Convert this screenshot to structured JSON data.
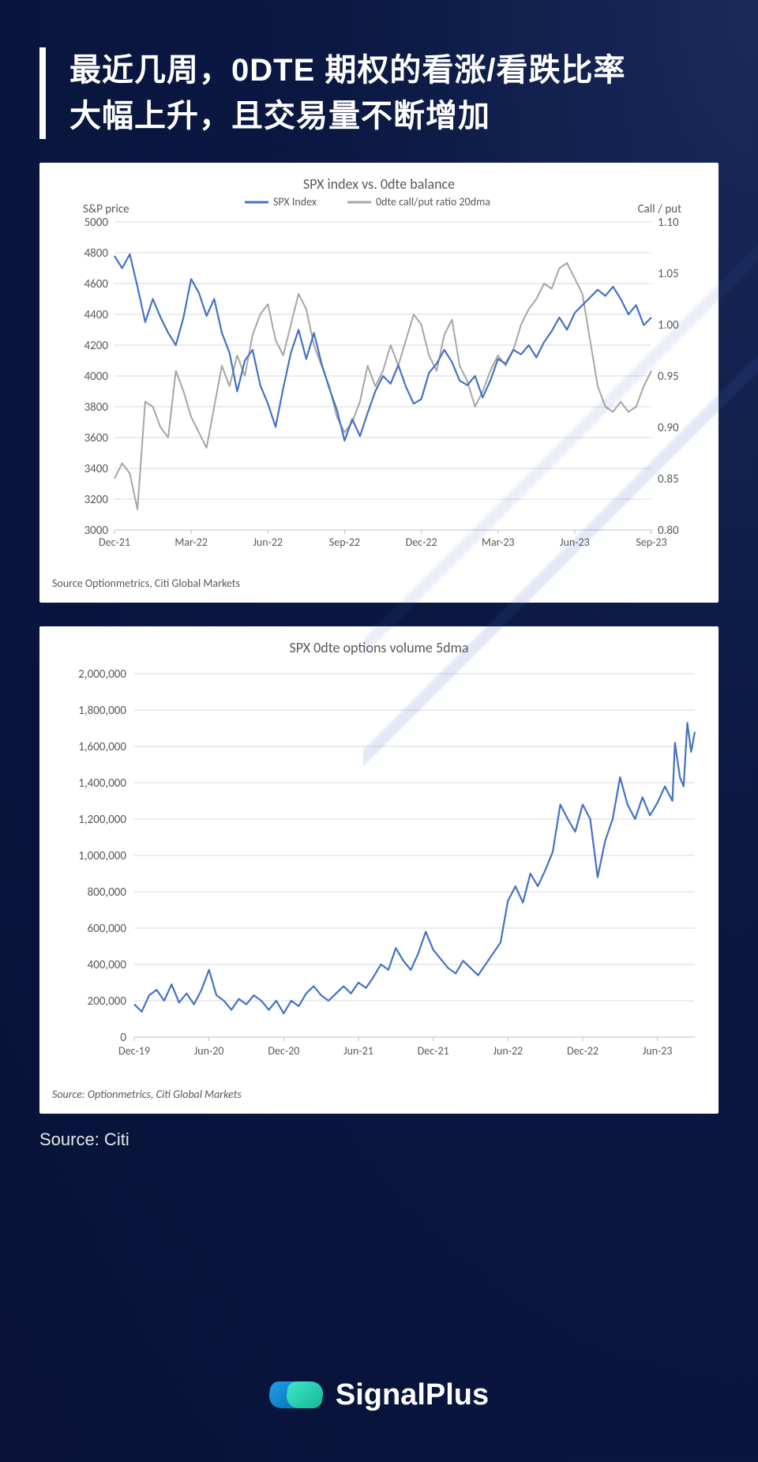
{
  "header": {
    "title_line1": "最近几周，0DTE 期权的看涨/看跌比率",
    "title_line2": "大幅上升，且交易量不断增加"
  },
  "outer_source": "Source: Citi",
  "brand": "SignalPlus",
  "chart1": {
    "type": "line-dual-axis",
    "title": "SPX index vs. 0dte balance",
    "source": "Source Optionmetrics, Citi Global Markets",
    "background_color": "#ffffff",
    "grid_color": "#d9d9d9",
    "axis_color": "#bfbfbf",
    "text_color": "#595959",
    "left_axis": {
      "label": "S&P price",
      "min": 3000,
      "max": 5000,
      "step": 200
    },
    "right_axis": {
      "label": "Call / put",
      "min": 0.8,
      "max": 1.1,
      "step": 0.05
    },
    "x_labels": [
      "Dec-21",
      "Mar-22",
      "Jun-22",
      "Sep-22",
      "Dec-22",
      "Mar-23",
      "Jun-23",
      "Sep-23"
    ],
    "x_range": [
      0,
      21
    ],
    "legend": [
      {
        "label": "SPX Index",
        "color": "#4472c4",
        "width": 2.5
      },
      {
        "label": "0dte call/put ratio 20dma",
        "color": "#a6a6a6",
        "width": 2.5
      }
    ],
    "spx": {
      "color": "#4472c4",
      "width": 2.2,
      "points": [
        [
          0,
          4780
        ],
        [
          0.3,
          4700
        ],
        [
          0.6,
          4790
        ],
        [
          0.9,
          4580
        ],
        [
          1.2,
          4350
        ],
        [
          1.5,
          4500
        ],
        [
          1.8,
          4380
        ],
        [
          2.1,
          4280
        ],
        [
          2.4,
          4200
        ],
        [
          2.7,
          4380
        ],
        [
          3,
          4630
        ],
        [
          3.3,
          4540
        ],
        [
          3.6,
          4390
        ],
        [
          3.9,
          4500
        ],
        [
          4.2,
          4280
        ],
        [
          4.5,
          4150
        ],
        [
          4.8,
          3900
        ],
        [
          5.1,
          4100
        ],
        [
          5.4,
          4170
        ],
        [
          5.7,
          3940
        ],
        [
          6,
          3820
        ],
        [
          6.3,
          3670
        ],
        [
          6.6,
          3920
        ],
        [
          6.9,
          4150
        ],
        [
          7.2,
          4300
        ],
        [
          7.5,
          4110
        ],
        [
          7.8,
          4280
        ],
        [
          8.1,
          4080
        ],
        [
          8.4,
          3920
        ],
        [
          8.7,
          3780
        ],
        [
          9,
          3580
        ],
        [
          9.3,
          3720
        ],
        [
          9.6,
          3610
        ],
        [
          9.9,
          3760
        ],
        [
          10.2,
          3900
        ],
        [
          10.5,
          4000
        ],
        [
          10.8,
          3950
        ],
        [
          11.1,
          4070
        ],
        [
          11.4,
          3930
        ],
        [
          11.7,
          3820
        ],
        [
          12,
          3850
        ],
        [
          12.3,
          4020
        ],
        [
          12.6,
          4080
        ],
        [
          12.9,
          4170
        ],
        [
          13.2,
          4090
        ],
        [
          13.5,
          3970
        ],
        [
          13.8,
          3940
        ],
        [
          14.1,
          4000
        ],
        [
          14.4,
          3860
        ],
        [
          14.7,
          3970
        ],
        [
          15,
          4110
        ],
        [
          15.3,
          4080
        ],
        [
          15.6,
          4170
        ],
        [
          15.9,
          4140
        ],
        [
          16.2,
          4200
        ],
        [
          16.5,
          4120
        ],
        [
          16.8,
          4220
        ],
        [
          17.1,
          4290
        ],
        [
          17.4,
          4380
        ],
        [
          17.7,
          4300
        ],
        [
          18,
          4410
        ],
        [
          18.3,
          4460
        ],
        [
          18.6,
          4510
        ],
        [
          18.9,
          4560
        ],
        [
          19.2,
          4520
        ],
        [
          19.5,
          4580
        ],
        [
          19.8,
          4500
        ],
        [
          20.1,
          4400
        ],
        [
          20.4,
          4460
        ],
        [
          20.7,
          4330
        ],
        [
          21,
          4380
        ]
      ]
    },
    "ratio": {
      "color": "#a6a6a6",
      "width": 2.0,
      "points": [
        [
          0,
          0.85
        ],
        [
          0.3,
          0.865
        ],
        [
          0.6,
          0.855
        ],
        [
          0.9,
          0.82
        ],
        [
          1.2,
          0.925
        ],
        [
          1.5,
          0.92
        ],
        [
          1.8,
          0.9
        ],
        [
          2.1,
          0.89
        ],
        [
          2.4,
          0.955
        ],
        [
          2.7,
          0.935
        ],
        [
          3,
          0.91
        ],
        [
          3.3,
          0.895
        ],
        [
          3.6,
          0.88
        ],
        [
          3.9,
          0.92
        ],
        [
          4.2,
          0.96
        ],
        [
          4.5,
          0.94
        ],
        [
          4.8,
          0.97
        ],
        [
          5.1,
          0.95
        ],
        [
          5.4,
          0.99
        ],
        [
          5.7,
          1.01
        ],
        [
          6,
          1.02
        ],
        [
          6.3,
          0.985
        ],
        [
          6.6,
          0.97
        ],
        [
          6.9,
          1.0
        ],
        [
          7.2,
          1.03
        ],
        [
          7.5,
          1.015
        ],
        [
          7.8,
          0.98
        ],
        [
          8.1,
          0.96
        ],
        [
          8.4,
          0.94
        ],
        [
          8.7,
          0.91
        ],
        [
          9,
          0.895
        ],
        [
          9.3,
          0.905
        ],
        [
          9.6,
          0.925
        ],
        [
          9.9,
          0.96
        ],
        [
          10.2,
          0.94
        ],
        [
          10.5,
          0.955
        ],
        [
          10.8,
          0.98
        ],
        [
          11.1,
          0.96
        ],
        [
          11.4,
          0.985
        ],
        [
          11.7,
          1.01
        ],
        [
          12,
          1.0
        ],
        [
          12.3,
          0.97
        ],
        [
          12.6,
          0.955
        ],
        [
          12.9,
          0.99
        ],
        [
          13.2,
          1.005
        ],
        [
          13.5,
          0.96
        ],
        [
          13.8,
          0.945
        ],
        [
          14.1,
          0.92
        ],
        [
          14.4,
          0.935
        ],
        [
          14.7,
          0.955
        ],
        [
          15,
          0.97
        ],
        [
          15.3,
          0.96
        ],
        [
          15.6,
          0.975
        ],
        [
          15.9,
          1.0
        ],
        [
          16.2,
          1.015
        ],
        [
          16.5,
          1.025
        ],
        [
          16.8,
          1.04
        ],
        [
          17.1,
          1.035
        ],
        [
          17.4,
          1.055
        ],
        [
          17.7,
          1.06
        ],
        [
          18,
          1.045
        ],
        [
          18.3,
          1.03
        ],
        [
          18.6,
          0.985
        ],
        [
          18.9,
          0.94
        ],
        [
          19.2,
          0.92
        ],
        [
          19.5,
          0.915
        ],
        [
          19.8,
          0.925
        ],
        [
          20.1,
          0.915
        ],
        [
          20.4,
          0.92
        ],
        [
          20.7,
          0.94
        ],
        [
          21,
          0.955
        ]
      ]
    }
  },
  "chart2": {
    "type": "line",
    "title": "SPX 0dte options volume 5dma",
    "source": "Source: Optionmetrics, Citi Global Markets",
    "background_color": "#ffffff",
    "grid_color": "#d9d9d9",
    "axis_color": "#bfbfbf",
    "text_color": "#595959",
    "y_axis": {
      "min": 0,
      "max": 2000000,
      "step": 200000
    },
    "x_labels": [
      "Dec-19",
      "Jun-20",
      "Dec-20",
      "Jun-21",
      "Dec-21",
      "Jun-22",
      "Dec-22",
      "Jun-23"
    ],
    "x_range": [
      0,
      45
    ],
    "series": {
      "color": "#4472c4",
      "width": 2.2,
      "points": [
        [
          0,
          180000
        ],
        [
          0.6,
          140000
        ],
        [
          1.2,
          230000
        ],
        [
          1.8,
          260000
        ],
        [
          2.4,
          200000
        ],
        [
          3,
          290000
        ],
        [
          3.6,
          190000
        ],
        [
          4.2,
          240000
        ],
        [
          4.8,
          180000
        ],
        [
          5.4,
          260000
        ],
        [
          6,
          370000
        ],
        [
          6.6,
          230000
        ],
        [
          7.2,
          200000
        ],
        [
          7.8,
          150000
        ],
        [
          8.4,
          210000
        ],
        [
          9,
          180000
        ],
        [
          9.6,
          230000
        ],
        [
          10.2,
          200000
        ],
        [
          10.8,
          150000
        ],
        [
          11.4,
          200000
        ],
        [
          12,
          130000
        ],
        [
          12.6,
          200000
        ],
        [
          13.2,
          170000
        ],
        [
          13.8,
          240000
        ],
        [
          14.4,
          280000
        ],
        [
          15,
          230000
        ],
        [
          15.6,
          200000
        ],
        [
          16.2,
          240000
        ],
        [
          16.8,
          280000
        ],
        [
          17.4,
          240000
        ],
        [
          18,
          300000
        ],
        [
          18.6,
          270000
        ],
        [
          19.2,
          330000
        ],
        [
          19.8,
          400000
        ],
        [
          20.4,
          370000
        ],
        [
          21,
          490000
        ],
        [
          21.6,
          420000
        ],
        [
          22.2,
          370000
        ],
        [
          22.8,
          460000
        ],
        [
          23.4,
          580000
        ],
        [
          24,
          480000
        ],
        [
          24.6,
          430000
        ],
        [
          25.2,
          380000
        ],
        [
          25.8,
          350000
        ],
        [
          26.4,
          420000
        ],
        [
          27,
          380000
        ],
        [
          27.6,
          340000
        ],
        [
          28.2,
          400000
        ],
        [
          28.8,
          460000
        ],
        [
          29.4,
          520000
        ],
        [
          30,
          750000
        ],
        [
          30.6,
          830000
        ],
        [
          31.2,
          740000
        ],
        [
          31.8,
          900000
        ],
        [
          32.4,
          830000
        ],
        [
          33,
          920000
        ],
        [
          33.6,
          1020000
        ],
        [
          34.2,
          1280000
        ],
        [
          34.8,
          1200000
        ],
        [
          35.4,
          1130000
        ],
        [
          36,
          1280000
        ],
        [
          36.6,
          1200000
        ],
        [
          37.2,
          880000
        ],
        [
          37.8,
          1080000
        ],
        [
          38.4,
          1200000
        ],
        [
          39,
          1430000
        ],
        [
          39.6,
          1280000
        ],
        [
          40.2,
          1200000
        ],
        [
          40.8,
          1320000
        ],
        [
          41.4,
          1220000
        ],
        [
          42,
          1290000
        ],
        [
          42.6,
          1380000
        ],
        [
          43.2,
          1300000
        ],
        [
          43.4,
          1620000
        ],
        [
          43.8,
          1430000
        ],
        [
          44.1,
          1380000
        ],
        [
          44.4,
          1730000
        ],
        [
          44.7,
          1570000
        ],
        [
          45,
          1680000
        ]
      ]
    }
  }
}
